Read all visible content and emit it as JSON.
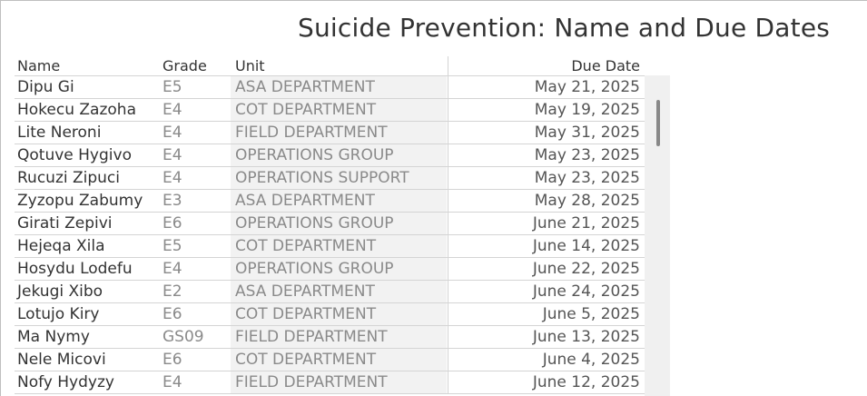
{
  "title": "Suicide Prevention: Name and Due Dates",
  "columns": {
    "name": "Name",
    "grade": "Grade",
    "unit": "Unit",
    "due_date": "Due Date"
  },
  "rows": [
    {
      "name": "Dipu Gi",
      "grade": "E5",
      "unit": "ASA DEPARTMENT",
      "due": "May 21, 2025"
    },
    {
      "name": "Hokecu Zazoha",
      "grade": "E4",
      "unit": "COT DEPARTMENT",
      "due": "May 19, 2025"
    },
    {
      "name": "Lite Neroni",
      "grade": "E4",
      "unit": "FIELD DEPARTMENT",
      "due": "May 31, 2025"
    },
    {
      "name": "Qotuve Hygivo",
      "grade": "E4",
      "unit": "OPERATIONS GROUP",
      "due": "May 23, 2025"
    },
    {
      "name": "Rucuzi Zipuci",
      "grade": "E4",
      "unit": "OPERATIONS SUPPORT",
      "due": "May 23, 2025"
    },
    {
      "name": "Zyzopu Zabumy",
      "grade": "E3",
      "unit": "ASA DEPARTMENT",
      "due": "May 28, 2025"
    },
    {
      "name": "Girati Zepivi",
      "grade": "E6",
      "unit": "OPERATIONS GROUP",
      "due": "June 21, 2025"
    },
    {
      "name": "Hejeqa Xila",
      "grade": "E5",
      "unit": "COT DEPARTMENT",
      "due": "June 14, 2025"
    },
    {
      "name": "Hosydu Lodefu",
      "grade": "E4",
      "unit": "OPERATIONS GROUP",
      "due": "June 22, 2025"
    },
    {
      "name": "Jekugi Xibo",
      "grade": "E2",
      "unit": "ASA DEPARTMENT",
      "due": "June 24, 2025"
    },
    {
      "name": "Lotujo Kiry",
      "grade": "E6",
      "unit": "COT DEPARTMENT",
      "due": "June 5, 2025"
    },
    {
      "name": "Ma Nymy",
      "grade": "GS09",
      "unit": "FIELD DEPARTMENT",
      "due": "June 13, 2025"
    },
    {
      "name": "Nele Micovi",
      "grade": "E6",
      "unit": "COT DEPARTMENT",
      "due": "June 4, 2025"
    },
    {
      "name": "Nofy Hydyzy",
      "grade": "E4",
      "unit": "FIELD DEPARTMENT",
      "due": "June 12, 2025"
    }
  ],
  "colors": {
    "title": "#333333",
    "muted_text": "#8a8a8a",
    "unit_band": "#f2f2f2",
    "gridline": "#d4d4d4",
    "scroll_thumb": "#888888"
  },
  "icons": {
    "scroll": "vertical-scrollbar"
  }
}
